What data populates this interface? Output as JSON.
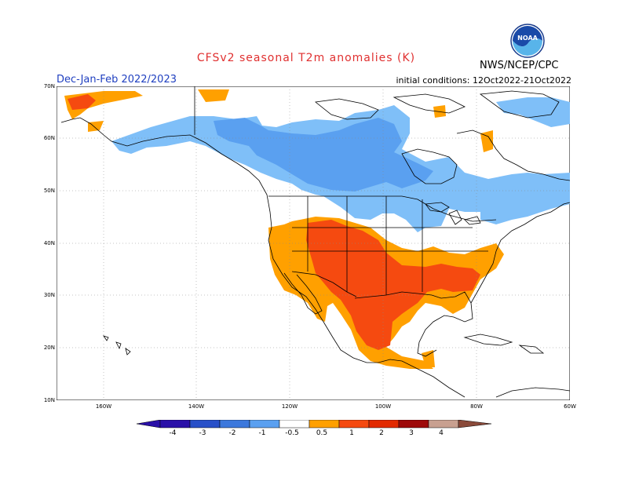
{
  "header": {
    "title": "CFSv2 seasonal T2m anomalies (K)",
    "season": "Dec-Jan-Feb 2022/2023",
    "initial_conditions": "initial conditions: 12Oct2022-21Oct2022",
    "agency": "NWS/NCEP/CPC",
    "logo_text": "NOAA"
  },
  "colors": {
    "title": "#e03030",
    "season": "#2040c0",
    "neg4": "#2a10a8",
    "neg3": "#2850c8",
    "neg2": "#3c78dc",
    "neg1": "#5aa0f0",
    "neg05": "#7fbff8",
    "pos05": "#ffa000",
    "pos1": "#f54a10",
    "pos2": "#e22a00",
    "pos3": "#9e0a0a",
    "pos4": "#c8a090",
    "pos5": "#8a4a3a"
  },
  "axes": {
    "lat_labels": [
      "70N",
      "60N",
      "50N",
      "40N",
      "30N",
      "20N",
      "10N"
    ],
    "lon_labels": [
      "160W",
      "140W",
      "120W",
      "100W",
      "80W",
      "60W"
    ]
  },
  "legend": {
    "labels": [
      "-4",
      "-3",
      "-2",
      "-1",
      "-0.5",
      "0.5",
      "1",
      "2",
      "3",
      "4"
    ]
  }
}
